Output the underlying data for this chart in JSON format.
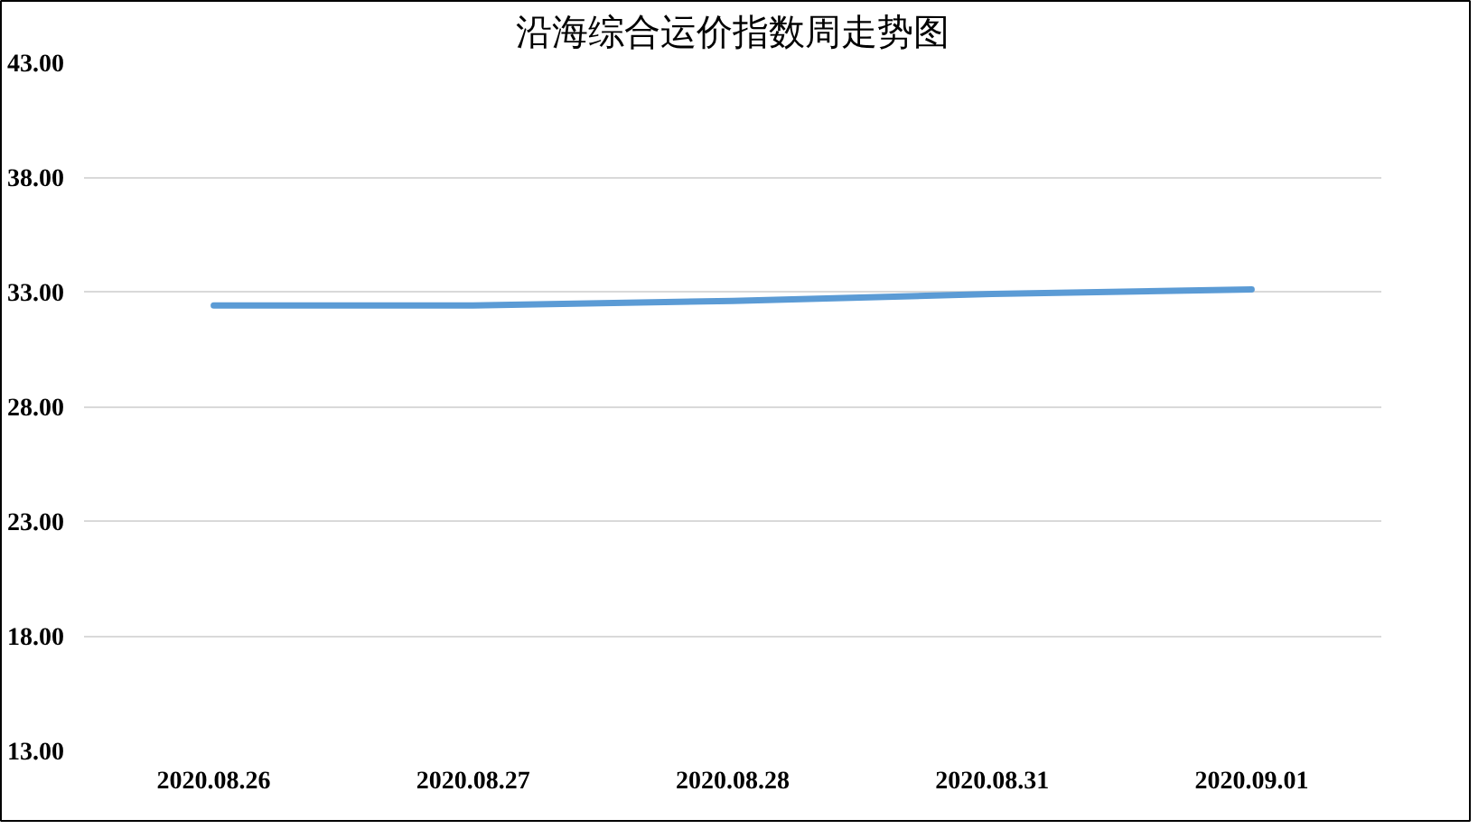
{
  "chart_data": {
    "type": "line",
    "title": "沿海综合运价指数周走势图",
    "categories": [
      "2020.08.26",
      "2020.08.27",
      "2020.08.28",
      "2020.08.31",
      "2020.09.01"
    ],
    "series": [
      {
        "color": "#5b9bd5",
        "values": [
          32.4,
          32.4,
          32.6,
          32.9,
          33.1
        ]
      }
    ],
    "ylim": [
      13,
      43
    ],
    "yticks": [
      {
        "value": 13,
        "label": "13.00"
      },
      {
        "value": 18,
        "label": "18.00"
      },
      {
        "value": 23,
        "label": "23.00"
      },
      {
        "value": 28,
        "label": "28.00"
      },
      {
        "value": 33,
        "label": "33.00"
      },
      {
        "value": 38,
        "label": "38.00"
      },
      {
        "value": 43,
        "label": "43.00"
      }
    ],
    "grid": "y",
    "marker": "none",
    "line_style": "solid"
  }
}
